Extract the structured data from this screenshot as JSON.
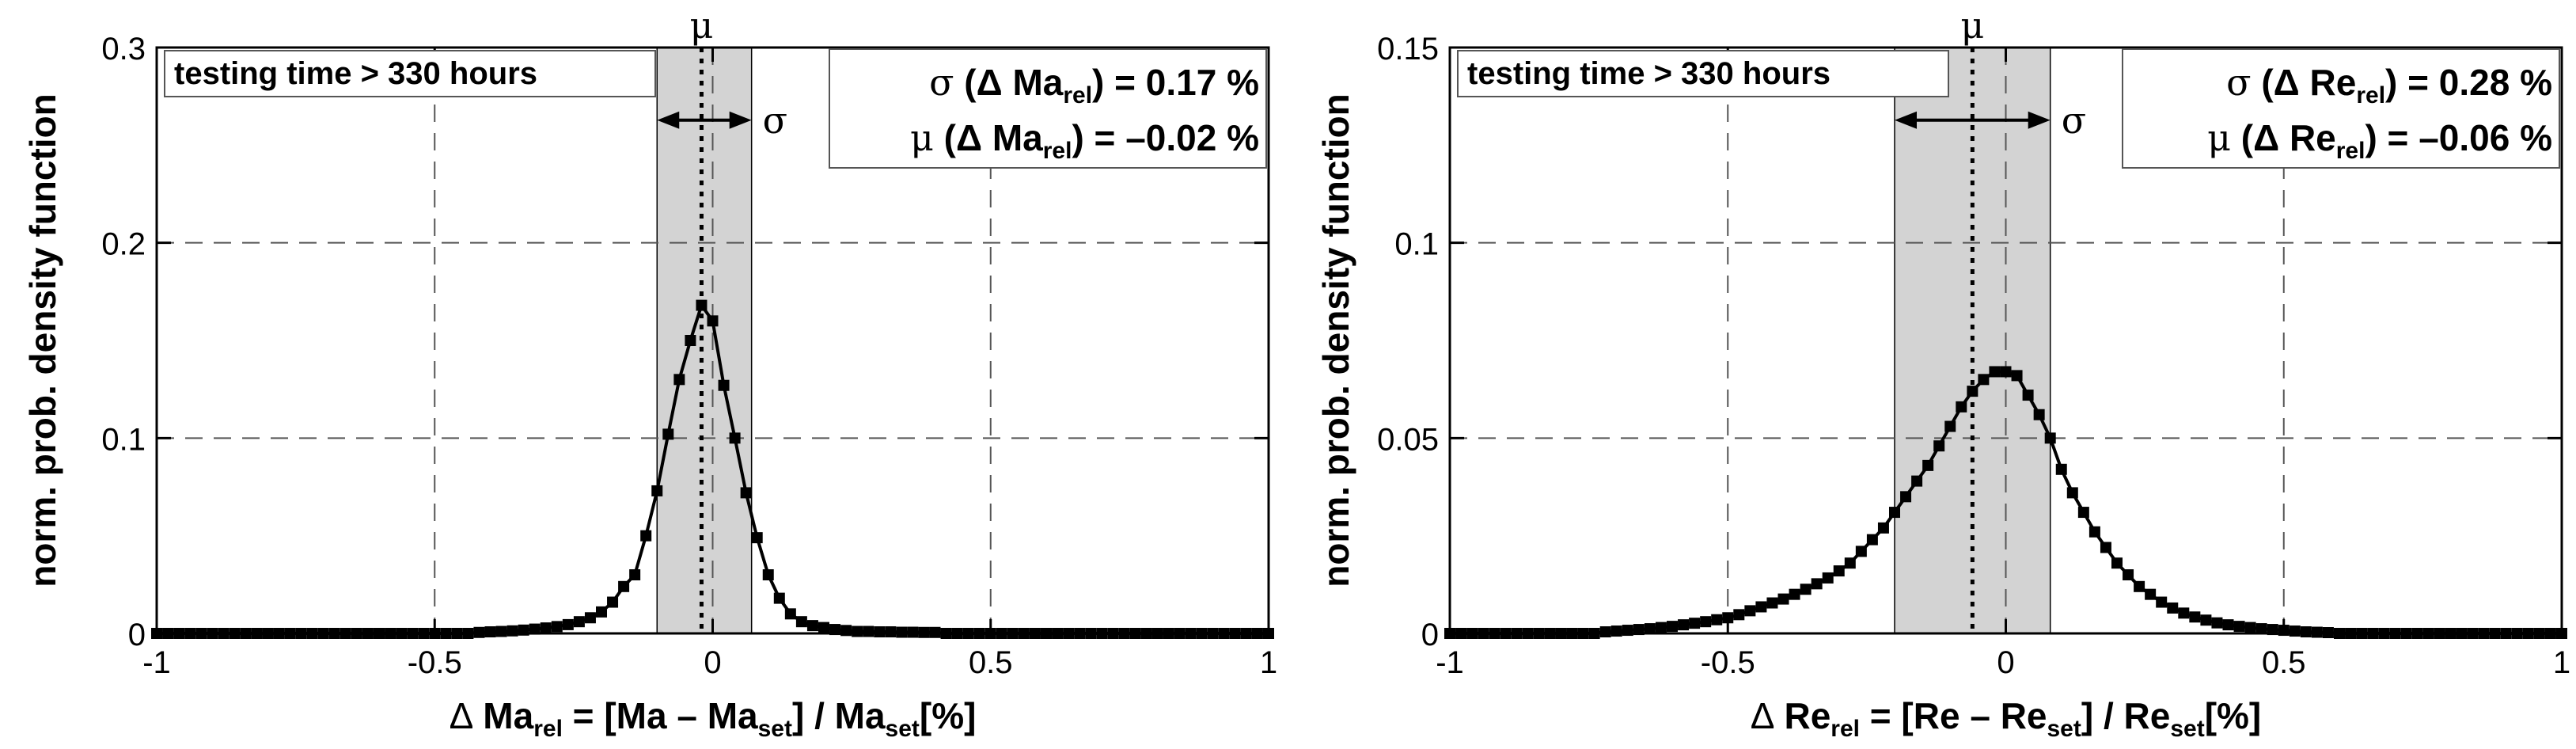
{
  "chart_data": [
    {
      "type": "line",
      "annotation": "testing time > 330 hours",
      "ylabel": "norm. prob. density function",
      "xlabel": {
        "delta": "Δ",
        "quantity": "Ma",
        "sub_rel": "rel",
        "eq": " = [Ma – Ma",
        "sub_set1": "set",
        "div": "] / Ma",
        "sub_set2": "set",
        "unit": "[%]"
      },
      "stats": {
        "sigma": {
          "symbol": "σ",
          "pre": " (Δ ",
          "quantity": "Ma",
          "sub": "rel",
          "post": ") = 0.17 %"
        },
        "mu": {
          "symbol": "μ",
          "pre": " (Δ ",
          "quantity": "Ma",
          "sub": "rel",
          "post": ") = –0.02 %"
        }
      },
      "markers": {
        "mu_label": "μ",
        "sigma_label": "σ",
        "mu": -0.02,
        "sigma": 0.17,
        "band": [
          -0.1,
          0.07
        ]
      },
      "xlim": [
        -1,
        1
      ],
      "ylim": [
        0,
        0.3
      ],
      "xticks": [
        -1,
        -0.5,
        0,
        0.5,
        1
      ],
      "xtick_labels": [
        "-1",
        "-0.5",
        "0",
        "0.5",
        "1"
      ],
      "yticks": [
        0,
        0.1,
        0.2,
        0.3
      ],
      "ytick_labels": [
        "0",
        "0.1",
        "0.2",
        "0.3"
      ],
      "grid": true,
      "series": [
        {
          "x": [
            -1.0,
            -0.98,
            -0.96,
            -0.94,
            -0.92,
            -0.9,
            -0.88,
            -0.86,
            -0.84,
            -0.82,
            -0.8,
            -0.78,
            -0.76,
            -0.74,
            -0.72,
            -0.7,
            -0.68,
            -0.66,
            -0.64,
            -0.62,
            -0.6,
            -0.58,
            -0.56,
            -0.54,
            -0.52,
            -0.5,
            -0.48,
            -0.46,
            -0.44,
            -0.42,
            -0.4,
            -0.38,
            -0.36,
            -0.34,
            -0.32,
            -0.3,
            -0.28,
            -0.26,
            -0.24,
            -0.22,
            -0.2,
            -0.18,
            -0.16,
            -0.14,
            -0.12,
            -0.1,
            -0.08,
            -0.06,
            -0.04,
            -0.02,
            0.0,
            0.02,
            0.04,
            0.06,
            0.08,
            0.1,
            0.12,
            0.14,
            0.16,
            0.18,
            0.2,
            0.22,
            0.24,
            0.26,
            0.28,
            0.3,
            0.32,
            0.34,
            0.36,
            0.38,
            0.4,
            0.42,
            0.44,
            0.46,
            0.48,
            0.5,
            0.52,
            0.54,
            0.56,
            0.58,
            0.6,
            0.62,
            0.64,
            0.66,
            0.68,
            0.7,
            0.72,
            0.74,
            0.76,
            0.78,
            0.8,
            0.82,
            0.84,
            0.86,
            0.88,
            0.9,
            0.92,
            0.94,
            0.96,
            0.98,
            1.0
          ],
          "y": [
            0.0,
            0.0,
            0.0,
            0.0,
            0.0,
            0.0,
            0.0,
            0.0,
            0.0,
            0.0,
            0.0,
            0.0,
            0.0,
            0.0,
            0.0,
            0.0,
            0.0,
            0.0,
            0.0,
            0.0,
            0.0,
            0.0,
            0.0,
            0.0,
            0.0,
            0.0,
            0.0,
            0.0,
            0.0,
            0.0005,
            0.0008,
            0.001,
            0.0013,
            0.0017,
            0.0022,
            0.0028,
            0.0035,
            0.0045,
            0.006,
            0.008,
            0.011,
            0.016,
            0.024,
            0.03,
            0.05,
            0.073,
            0.102,
            0.13,
            0.15,
            0.168,
            0.16,
            0.127,
            0.1,
            0.072,
            0.049,
            0.03,
            0.018,
            0.01,
            0.006,
            0.004,
            0.003,
            0.002,
            0.0015,
            0.001,
            0.001,
            0.0008,
            0.0008,
            0.0006,
            0.0006,
            0.0005,
            0.0005,
            0.0,
            0.0,
            0.0,
            0.0,
            0.0,
            0.0,
            0.0,
            0.0,
            0.0,
            0.0,
            0.0,
            0.0,
            0.0,
            0.0,
            0.0,
            0.0,
            0.0,
            0.0,
            0.0,
            0.0,
            0.0,
            0.0,
            0.0,
            0.0,
            0.0,
            0.0,
            0.0,
            0.0,
            0.0,
            0.0
          ]
        }
      ]
    },
    {
      "type": "line",
      "annotation": "testing time > 330 hours",
      "ylabel": "norm. prob. density function",
      "xlabel": {
        "delta": "Δ",
        "quantity": "Re",
        "sub_rel": "rel",
        "eq": " = [Re – Re",
        "sub_set1": "set",
        "div": "] / Re",
        "sub_set2": "set",
        "unit": "[%]"
      },
      "stats": {
        "sigma": {
          "symbol": "σ",
          "pre": " (Δ ",
          "quantity": "Re",
          "sub": "rel",
          "post": ") = 0.28 %"
        },
        "mu": {
          "symbol": "μ",
          "pre": " (Δ ",
          "quantity": "Re",
          "sub": "rel",
          "post": ") = –0.06 %"
        }
      },
      "markers": {
        "mu_label": "μ",
        "sigma_label": "σ",
        "mu": -0.06,
        "sigma": 0.28,
        "band": [
          -0.2,
          0.08
        ]
      },
      "xlim": [
        -1,
        1
      ],
      "ylim": [
        0,
        0.15
      ],
      "xticks": [
        -1,
        -0.5,
        0,
        0.5,
        1
      ],
      "xtick_labels": [
        "-1",
        "-0.5",
        "0",
        "0.5",
        "1"
      ],
      "yticks": [
        0,
        0.05,
        0.1,
        0.15
      ],
      "ytick_labels": [
        "0",
        "0.05",
        "0.1",
        "0.15"
      ],
      "grid": true,
      "series": [
        {
          "x": [
            -1.0,
            -0.98,
            -0.96,
            -0.94,
            -0.92,
            -0.9,
            -0.88,
            -0.86,
            -0.84,
            -0.82,
            -0.8,
            -0.78,
            -0.76,
            -0.74,
            -0.72,
            -0.7,
            -0.68,
            -0.66,
            -0.64,
            -0.62,
            -0.6,
            -0.58,
            -0.56,
            -0.54,
            -0.52,
            -0.5,
            -0.48,
            -0.46,
            -0.44,
            -0.42,
            -0.4,
            -0.38,
            -0.36,
            -0.34,
            -0.32,
            -0.3,
            -0.28,
            -0.26,
            -0.24,
            -0.22,
            -0.2,
            -0.18,
            -0.16,
            -0.14,
            -0.12,
            -0.1,
            -0.08,
            -0.06,
            -0.04,
            -0.02,
            0.0,
            0.02,
            0.04,
            0.06,
            0.08,
            0.1,
            0.12,
            0.14,
            0.16,
            0.18,
            0.2,
            0.22,
            0.24,
            0.26,
            0.28,
            0.3,
            0.32,
            0.34,
            0.36,
            0.38,
            0.4,
            0.42,
            0.44,
            0.46,
            0.48,
            0.5,
            0.52,
            0.54,
            0.56,
            0.58,
            0.6,
            0.62,
            0.64,
            0.66,
            0.68,
            0.7,
            0.72,
            0.74,
            0.76,
            0.78,
            0.8,
            0.82,
            0.84,
            0.86,
            0.88,
            0.9,
            0.92,
            0.94,
            0.96,
            0.98,
            1.0
          ],
          "y": [
            0.0,
            0.0,
            0.0,
            0.0,
            0.0,
            0.0,
            0.0,
            0.0,
            0.0,
            0.0,
            0.0,
            0.0,
            0.0,
            0.0,
            0.0004,
            0.0006,
            0.0008,
            0.001,
            0.0012,
            0.0015,
            0.0018,
            0.0022,
            0.0026,
            0.003,
            0.0035,
            0.004,
            0.0048,
            0.0058,
            0.0068,
            0.0078,
            0.0088,
            0.01,
            0.0113,
            0.0127,
            0.0142,
            0.016,
            0.018,
            0.021,
            0.024,
            0.027,
            0.031,
            0.035,
            0.039,
            0.043,
            0.048,
            0.053,
            0.058,
            0.062,
            0.065,
            0.067,
            0.067,
            0.066,
            0.061,
            0.056,
            0.05,
            0.042,
            0.036,
            0.031,
            0.026,
            0.022,
            0.018,
            0.015,
            0.012,
            0.01,
            0.008,
            0.0065,
            0.0052,
            0.0042,
            0.0034,
            0.0027,
            0.0022,
            0.0018,
            0.0015,
            0.0012,
            0.001,
            0.0008,
            0.0006,
            0.0004,
            0.0003,
            0.0002,
            0.0,
            0.0,
            0.0,
            0.0,
            0.0,
            0.0,
            0.0,
            0.0,
            0.0,
            0.0,
            0.0,
            0.0,
            0.0,
            0.0,
            0.0,
            0.0,
            0.0,
            0.0,
            0.0,
            0.0,
            0.0
          ]
        }
      ]
    }
  ]
}
